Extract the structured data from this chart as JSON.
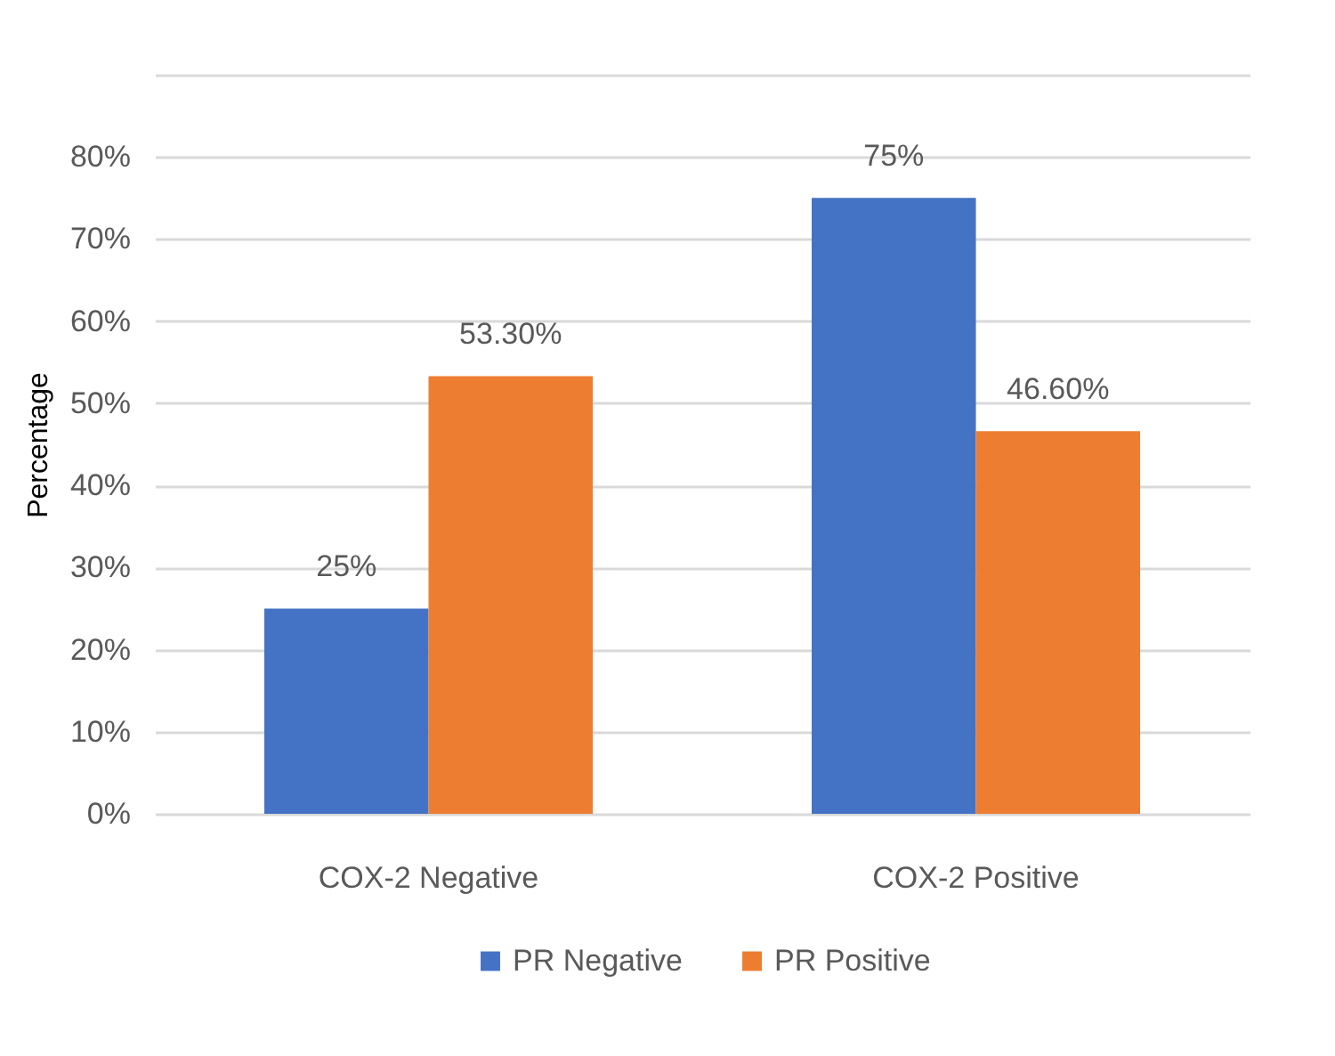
{
  "chart_data": {
    "type": "bar",
    "ylabel": "Percentage",
    "categories": [
      "COX-2 Negative",
      "COX-2 Positive"
    ],
    "series": [
      {
        "name": "PR Negative",
        "color": "#4472c4",
        "values": [
          25,
          75
        ],
        "value_labels": [
          "25%",
          "75%"
        ]
      },
      {
        "name": "PR Positive",
        "color": "#ed7d31",
        "values": [
          53.3,
          46.6
        ],
        "value_labels": [
          "53.30%",
          "46.60%"
        ]
      }
    ],
    "ylim": [
      0,
      90
    ],
    "yticks": [
      {
        "value": 0,
        "label": "0%"
      },
      {
        "value": 10,
        "label": "10%"
      },
      {
        "value": 20,
        "label": "20%"
      },
      {
        "value": 30,
        "label": "30%"
      },
      {
        "value": 40,
        "label": "40%"
      },
      {
        "value": 50,
        "label": "50%"
      },
      {
        "value": 60,
        "label": "60%"
      },
      {
        "value": 70,
        "label": "70%"
      },
      {
        "value": 80,
        "label": "80%"
      },
      {
        "value": 90,
        "label": null
      }
    ],
    "grid": "y",
    "legend": "bottom"
  }
}
